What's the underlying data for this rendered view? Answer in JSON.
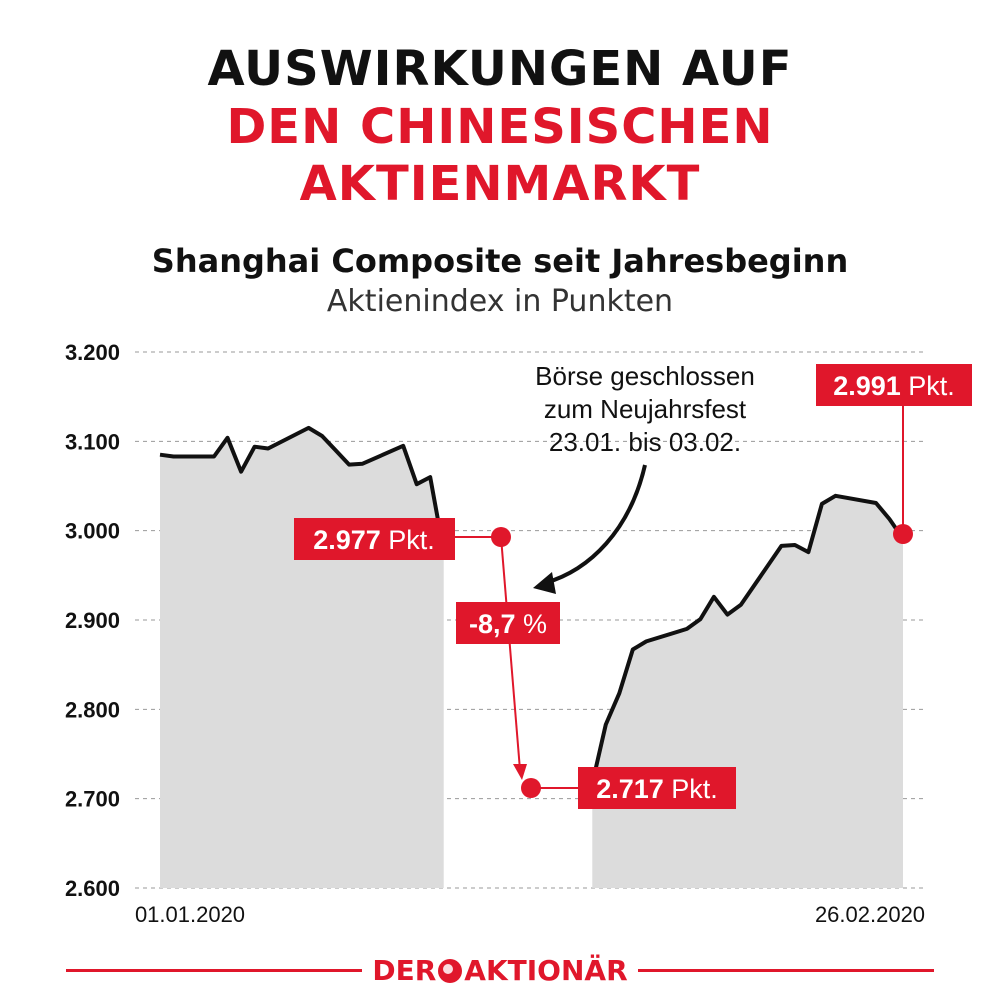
{
  "headline": {
    "line1": "AUSWIRKUNGEN AUF",
    "line2": "DEN CHINESISCHEN",
    "line3": "AKTIENMARKT"
  },
  "chart_data": {
    "type": "area",
    "title": "Shanghai Composite seit Jahresbeginn",
    "subtitle": "Aktienindex in Punkten",
    "ylim": [
      2600,
      3200
    ],
    "yticks": [
      "3.200",
      "3.100",
      "3.000",
      "2.900",
      "2.800",
      "2.700",
      "2.600"
    ],
    "ytick_values": [
      3200,
      3100,
      3000,
      2900,
      2800,
      2700,
      2600
    ],
    "grid": true,
    "xlabels": {
      "start": "01.01.2020",
      "end": "26.02.2020"
    },
    "series": [
      {
        "x": [
          "2020-01-02",
          "2020-01-03",
          "2020-01-06",
          "2020-01-07",
          "2020-01-08",
          "2020-01-09",
          "2020-01-10",
          "2020-01-13",
          "2020-01-14",
          "2020-01-15",
          "2020-01-16",
          "2020-01-17",
          "2020-01-20",
          "2020-01-21",
          "2020-01-22",
          "2020-01-23"
        ],
        "values": [
          3085,
          3083,
          3083,
          3104,
          3066,
          3094,
          3092,
          3115,
          3106,
          3090,
          3074,
          3075,
          3095,
          3052,
          3060,
          2977
        ]
      },
      {
        "x": [
          "2020-02-03",
          "2020-02-04",
          "2020-02-05",
          "2020-02-06",
          "2020-02-07",
          "2020-02-10",
          "2020-02-11",
          "2020-02-12",
          "2020-02-13",
          "2020-02-14",
          "2020-02-17",
          "2020-02-18",
          "2020-02-19",
          "2020-02-20",
          "2020-02-21",
          "2020-02-24",
          "2020-02-25",
          "2020-02-26"
        ],
        "values": [
          2717,
          2783,
          2818,
          2867,
          2876,
          2890,
          2901,
          2926,
          2906,
          2917,
          2983,
          2984,
          2976,
          3030,
          3039,
          3031,
          3013,
          2991
        ]
      }
    ],
    "annotations": {
      "closed_line1": "Börse geschlossen",
      "closed_line2": "zum Neujahrsfest",
      "closed_line3": "23.01. bis 03.02.",
      "before_value": "2.977",
      "after_value": "2.717",
      "end_value": "2.991",
      "unit": "Pkt.",
      "change_value": "-8,7",
      "change_unit": "%"
    }
  },
  "brand": {
    "left": "DER",
    "right": "AKTIONÄR"
  },
  "colors": {
    "accent": "#e0172b",
    "line": "#111111",
    "area": "#dcdcdc",
    "grid": "#999999"
  }
}
